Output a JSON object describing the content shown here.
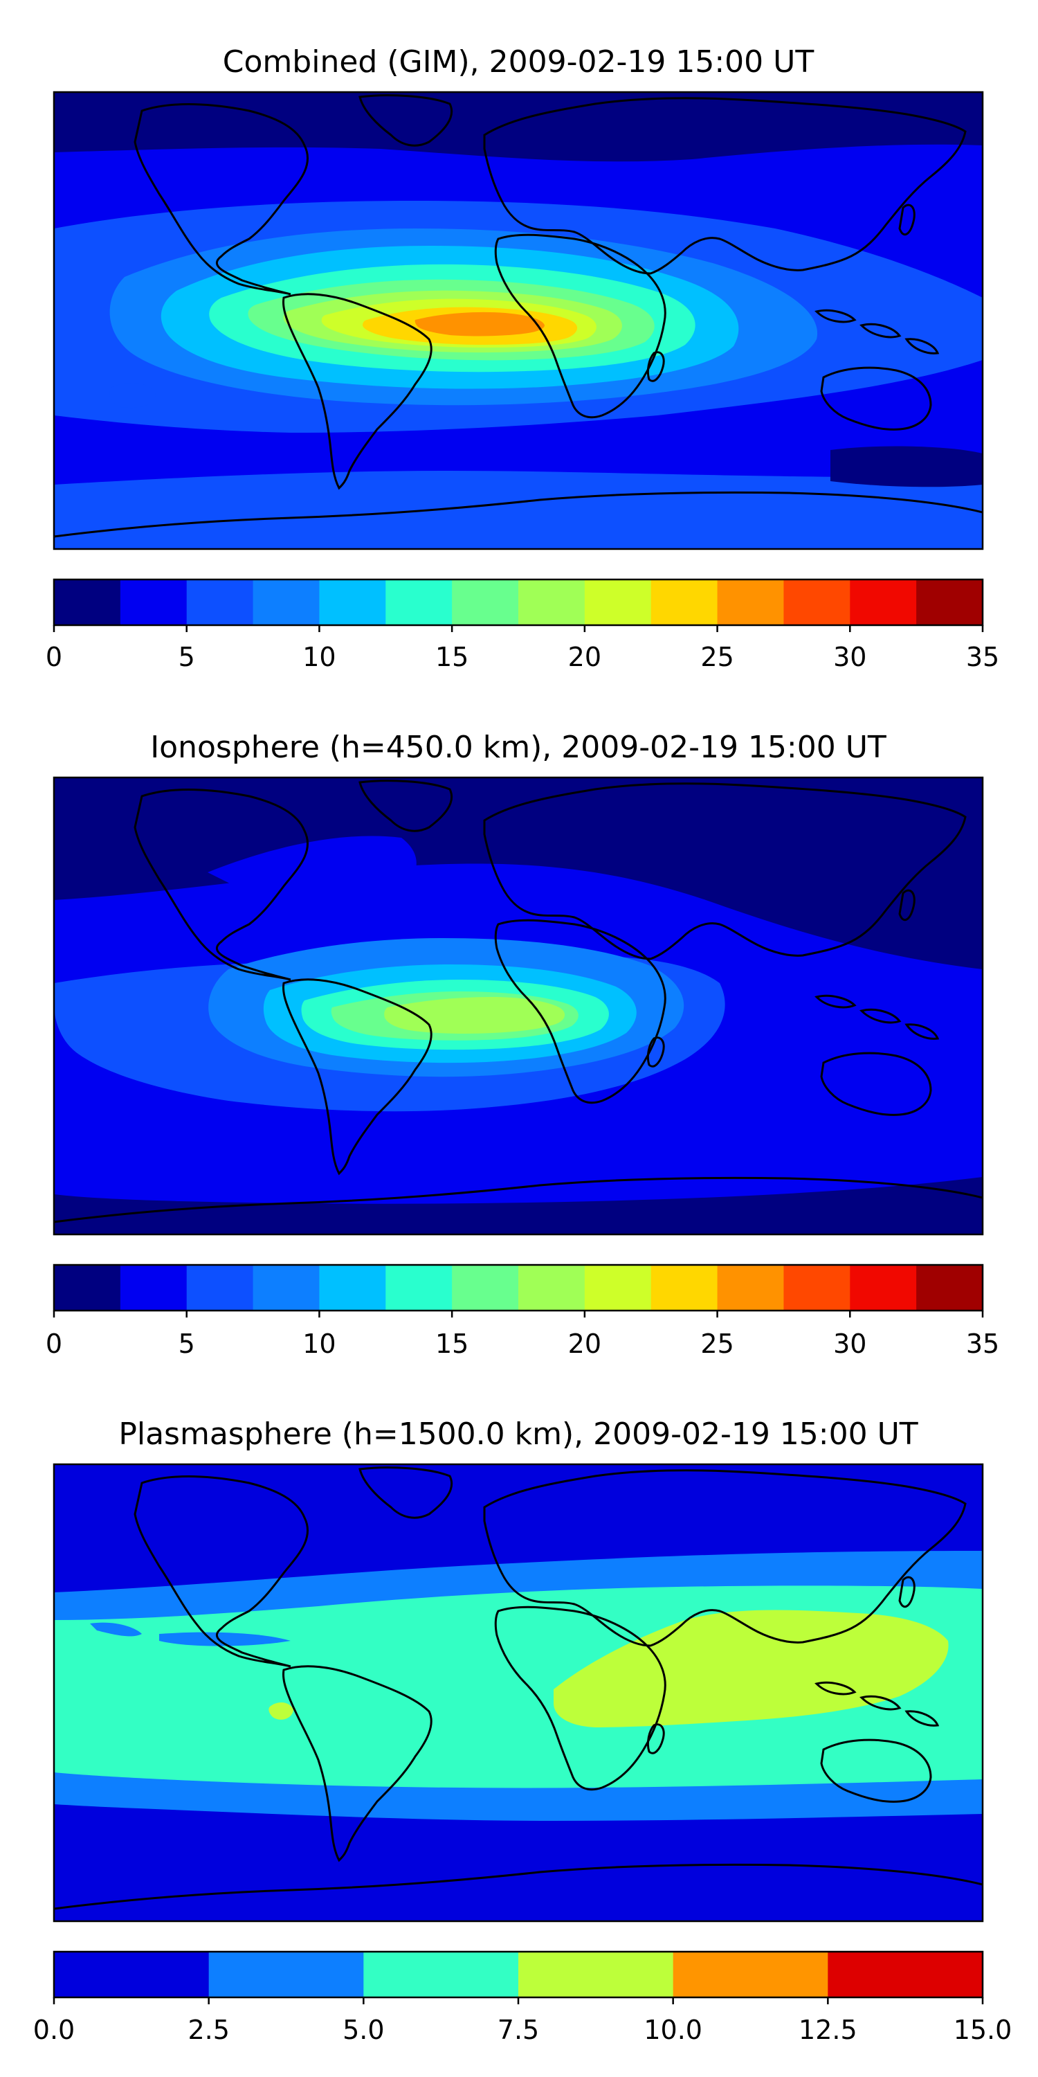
{
  "chart_data": [
    {
      "type": "heatmap",
      "title": "Combined (GIM), 2009-02-19 15:00 UT",
      "colorbar_levels": [
        0,
        2.5,
        5,
        7.5,
        10,
        12.5,
        15,
        17.5,
        20,
        22.5,
        25,
        27.5,
        30,
        32.5,
        35
      ],
      "colorbar_ticks": [
        "0",
        "5",
        "10",
        "15",
        "20",
        "25",
        "30",
        "35"
      ],
      "colorbar_tick_values": [
        0,
        5,
        10,
        15,
        20,
        25,
        30,
        35
      ],
      "colors": [
        "#000080",
        "#0000f1",
        "#0d50ff",
        "#0d7fff",
        "#00c0ff",
        "#29ffce",
        "#68ff8e",
        "#a0ff56",
        "#ceff29",
        "#ffd700",
        "#ff9200",
        "#ff4800",
        "#f10800",
        "#a00000"
      ],
      "peak_value_approx": 27.5,
      "peak_region": "tropical Atlantic / equatorial Africa"
    },
    {
      "type": "heatmap",
      "title": "Ionosphere  (h=450.0 km), 2009-02-19 15:00 UT",
      "colorbar_levels": [
        0,
        2.5,
        5,
        7.5,
        10,
        12.5,
        15,
        17.5,
        20,
        22.5,
        25,
        27.5,
        30,
        32.5,
        35
      ],
      "colorbar_ticks": [
        "0",
        "5",
        "10",
        "15",
        "20",
        "25",
        "30",
        "35"
      ],
      "colorbar_tick_values": [
        0,
        5,
        10,
        15,
        20,
        25,
        30,
        35
      ],
      "colors": [
        "#000080",
        "#0000f1",
        "#0d50ff",
        "#0d7fff",
        "#00c0ff",
        "#29ffce",
        "#68ff8e",
        "#a0ff56",
        "#ceff29",
        "#ffd700",
        "#ff9200",
        "#ff4800",
        "#f10800",
        "#a00000"
      ],
      "peak_value_approx": 20,
      "peak_region": "tropical Atlantic / central Africa"
    },
    {
      "type": "heatmap",
      "title": "Plasmasphere (h=1500.0 km), 2009-02-19 15:00 UT",
      "colorbar_levels": [
        0.0,
        2.5,
        5.0,
        7.5,
        10.0,
        12.5,
        15.0
      ],
      "colorbar_ticks": [
        "0.0",
        "2.5",
        "5.0",
        "7.5",
        "10.0",
        "12.5",
        "15.0"
      ],
      "colorbar_tick_values": [
        0.0,
        2.5,
        5.0,
        7.5,
        10.0,
        12.5,
        15.0
      ],
      "colors": [
        "#0000dd",
        "#0d7fff",
        "#33ffc4",
        "#bdff3a",
        "#ff9500",
        "#dd0000"
      ],
      "peak_value_approx": 10.0,
      "peak_region": "Indian Ocean / South-East Asia"
    }
  ]
}
